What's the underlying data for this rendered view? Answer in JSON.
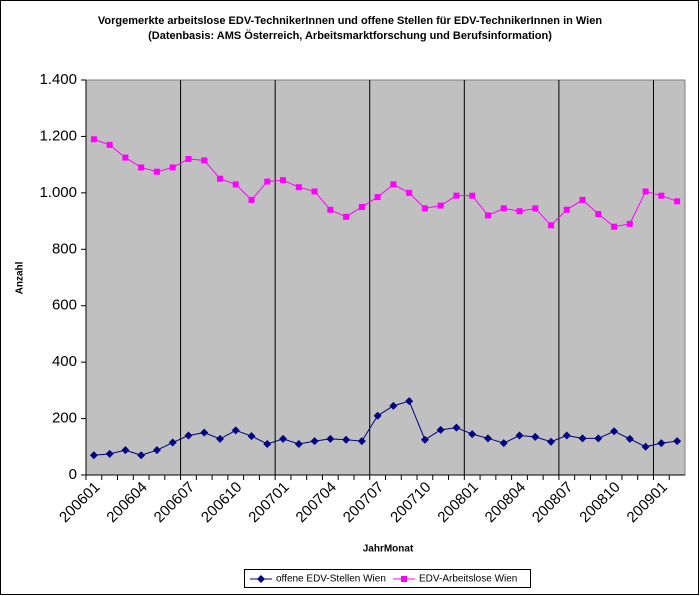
{
  "chart_data": {
    "type": "line",
    "title": "Vorgemerkte arbeitslose EDV-TechnikerInnen und offene Stellen für EDV-TechnikerInnen in Wien",
    "subtitle": "(Datenbasis: AMS Österreich, Arbeitsmarktforschung und Berufsinformation)",
    "x_label": "JahrMonat",
    "y_label": "Anzahl",
    "categories": [
      "200601",
      null,
      null,
      "200604",
      null,
      null,
      "200607",
      null,
      null,
      "200610",
      null,
      null,
      "200701",
      null,
      null,
      "200704",
      null,
      null,
      "200707",
      null,
      null,
      "200710",
      null,
      null,
      "200801",
      null,
      null,
      "200804",
      null,
      null,
      "200807",
      null,
      null,
      "200810",
      null,
      null,
      "200901",
      null
    ],
    "series": [
      {
        "name": "offene EDV-Stellen Wien",
        "color": "#000080",
        "marker": "diamond",
        "values": [
          70,
          75,
          88,
          70,
          88,
          115,
          140,
          150,
          128,
          158,
          138,
          110,
          128,
          110,
          120,
          128,
          125,
          120,
          210,
          245,
          262,
          125,
          160,
          168,
          145,
          130,
          113,
          140,
          135,
          118,
          140,
          130,
          130,
          155,
          128,
          100,
          113,
          120
        ]
      },
      {
        "name": "EDV-Arbeitslose Wien",
        "color": "#ff00ff",
        "marker": "square",
        "values": [
          1190,
          1170,
          1125,
          1090,
          1075,
          1090,
          1120,
          1115,
          1050,
          1030,
          975,
          1040,
          1045,
          1020,
          1005,
          940,
          915,
          950,
          985,
          1030,
          1000,
          945,
          955,
          990,
          990,
          920,
          945,
          935,
          945,
          885,
          940,
          975,
          925,
          880,
          890,
          1005,
          990,
          970
        ]
      }
    ],
    "ylim": [
      0,
      1400
    ],
    "yticks": [
      0,
      200,
      400,
      600,
      800,
      {
        "value": 1000,
        "label": "1.000"
      },
      {
        "value": 1200,
        "label": "1.200"
      },
      {
        "value": 1400,
        "label": "1.400"
      }
    ],
    "grid": true,
    "legend": "bottom",
    "plot_color": "#c0c0c0"
  }
}
